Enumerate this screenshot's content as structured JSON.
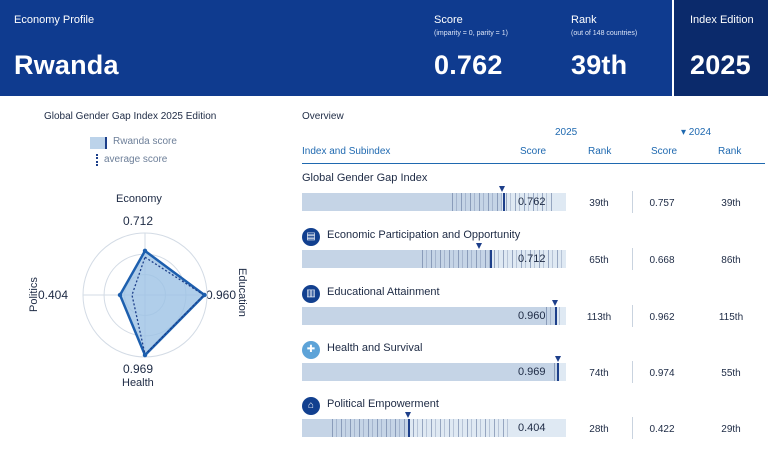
{
  "header": {
    "profile_label": "Economy Profile",
    "country": "Rwanda",
    "score_label": "Score",
    "score_sub": "(imparity = 0, parity = 1)",
    "score_value": "0.762",
    "rank_label": "Rank",
    "rank_sub": "(out of 148 countries)",
    "rank_value": "39th",
    "edition_label": "Index Edition",
    "edition_value": "2025"
  },
  "left": {
    "title": "Global Gender Gap Index 2025 Edition",
    "legend_rwanda": "Rwanda score",
    "legend_average": "average score",
    "axes": {
      "top_label": "Economy",
      "top_value": "0.712",
      "right_label": "Education",
      "right_value": "0.960",
      "bottom_label": "Health",
      "bottom_value": "0.969",
      "left_label": "Politics",
      "left_value": "0.404"
    }
  },
  "overview": {
    "title": "Overview",
    "year_current": "2025",
    "year_previous": "▾ 2024",
    "col_index": "Index and Subindex",
    "col_score": "Score",
    "col_rank": "Rank",
    "col_score_prev": "Score",
    "col_rank_prev": "Rank",
    "rows": [
      {
        "name": "Global Gender Gap Index",
        "score": "0.762",
        "rank": "39th",
        "score_prev": "0.757",
        "rank_prev": "39th"
      },
      {
        "name": "Economic Participation and Opportunity",
        "score": "0.712",
        "rank": "65th",
        "score_prev": "0.668",
        "rank_prev": "86th"
      },
      {
        "name": "Educational Attainment",
        "score": "0.960",
        "rank": "113th",
        "score_prev": "0.962",
        "rank_prev": "115th"
      },
      {
        "name": "Health and Survival",
        "score": "0.969",
        "rank": "74th",
        "score_prev": "0.974",
        "rank_prev": "55th"
      },
      {
        "name": "Political Empowerment",
        "score": "0.404",
        "rank": "28th",
        "score_prev": "0.422",
        "rank_prev": "29th"
      }
    ]
  },
  "chart_data": {
    "type": "radar",
    "categories": [
      "Economy",
      "Education",
      "Health",
      "Politics"
    ],
    "series": [
      {
        "name": "Rwanda score",
        "values": [
          0.712,
          0.96,
          0.969,
          0.404
        ]
      },
      {
        "name": "average score",
        "values": [
          0.61,
          0.95,
          0.96,
          0.21
        ]
      }
    ],
    "range": [
      0,
      1
    ]
  },
  "colors": {
    "header_bg": "#0f3b8f",
    "edition_bg": "#0b2a6b",
    "accent": "#1f69b0",
    "rwanda_fill": "#9cc2e5",
    "rwanda_stroke": "#1d5fae"
  }
}
